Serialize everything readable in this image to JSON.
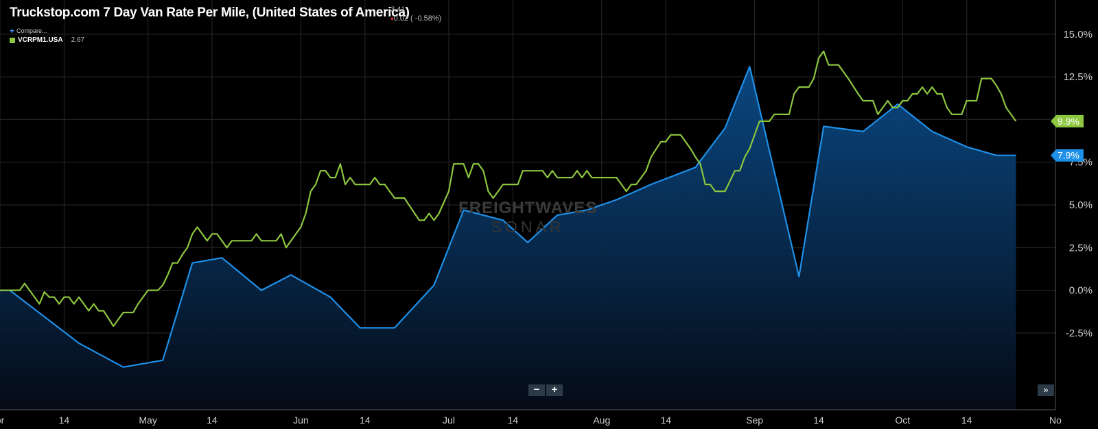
{
  "header": {
    "title": "Truckstop.com 7 Day Van Rate Per Mile, (United States of America)",
    "last_value": "3.41",
    "change": "0.02 ( -0.58%)"
  },
  "legend": {
    "compare_label": "Compare...",
    "series_name": "VCRPM1.USA",
    "series_value": "2.67"
  },
  "watermark": {
    "line1": "FREIGHTWAVES",
    "line2": "SONAR"
  },
  "controls": {
    "zoom_out": "−",
    "zoom_in": "+",
    "fast_forward": "»"
  },
  "colors": {
    "green": "#8dc63f",
    "blue": "#1e90e8",
    "grid": "#2a2a2a"
  },
  "chart_data": {
    "type": "line",
    "y_unit": "%",
    "ylim": [
      -7,
      17
    ],
    "y_ticks": [
      -2.5,
      0,
      2.5,
      5,
      7.5,
      10,
      12.5,
      15
    ],
    "y_tick_labels": [
      "-2.5%",
      "0.0%",
      "2.5%",
      "5.0%",
      "7.5%",
      "",
      "12.5%",
      "15.0%"
    ],
    "x_tick_labels": [
      {
        "date": "2019-04-01",
        "label": "pr"
      },
      {
        "date": "2019-04-14",
        "label": "14"
      },
      {
        "date": "2019-05-01",
        "label": "May"
      },
      {
        "date": "2019-05-14",
        "label": "14"
      },
      {
        "date": "2019-06-01",
        "label": "Jun"
      },
      {
        "date": "2019-06-14",
        "label": "14"
      },
      {
        "date": "2019-07-01",
        "label": "Jul"
      },
      {
        "date": "2019-07-14",
        "label": "14"
      },
      {
        "date": "2019-08-01",
        "label": "Aug"
      },
      {
        "date": "2019-08-14",
        "label": "14"
      },
      {
        "date": "2019-09-01",
        "label": "Sep"
      },
      {
        "date": "2019-09-14",
        "label": "14"
      },
      {
        "date": "2019-10-01",
        "label": "Oct"
      },
      {
        "date": "2019-10-14",
        "label": "14"
      },
      {
        "date": "2019-11-01",
        "label": "No"
      }
    ],
    "xlim": [
      "2019-04-01",
      "2019-11-01"
    ],
    "series": [
      {
        "color": "#8dc63f",
        "end_label": "9.9%",
        "points": [
          [
            "2019-04-01",
            0
          ],
          [
            "2019-04-05",
            0
          ],
          [
            "2019-04-06",
            0.4
          ],
          [
            "2019-04-07",
            0
          ],
          [
            "2019-04-09",
            -0.8
          ],
          [
            "2019-04-10",
            -0.1
          ],
          [
            "2019-04-11",
            -0.4
          ],
          [
            "2019-04-12",
            -0.4
          ],
          [
            "2019-04-13",
            -0.8
          ],
          [
            "2019-04-14",
            -0.4
          ],
          [
            "2019-04-15",
            -0.4
          ],
          [
            "2019-04-16",
            -0.8
          ],
          [
            "2019-04-17",
            -0.4
          ],
          [
            "2019-04-19",
            -1.2
          ],
          [
            "2019-04-20",
            -0.8
          ],
          [
            "2019-04-21",
            -1.2
          ],
          [
            "2019-04-22",
            -1.2
          ],
          [
            "2019-04-24",
            -2.1
          ],
          [
            "2019-04-26",
            -1.3
          ],
          [
            "2019-04-28",
            -1.3
          ],
          [
            "2019-04-29",
            -0.8
          ],
          [
            "2019-05-01",
            0
          ],
          [
            "2019-05-03",
            0
          ],
          [
            "2019-05-04",
            0.3
          ],
          [
            "2019-05-05",
            0.9
          ],
          [
            "2019-05-06",
            1.6
          ],
          [
            "2019-05-07",
            1.6
          ],
          [
            "2019-05-08",
            2.1
          ],
          [
            "2019-05-09",
            2.5
          ],
          [
            "2019-05-10",
            3.3
          ],
          [
            "2019-05-11",
            3.7
          ],
          [
            "2019-05-12",
            3.3
          ],
          [
            "2019-05-13",
            2.9
          ],
          [
            "2019-05-14",
            3.3
          ],
          [
            "2019-05-15",
            3.3
          ],
          [
            "2019-05-17",
            2.5
          ],
          [
            "2019-05-18",
            2.9
          ],
          [
            "2019-05-22",
            2.9
          ],
          [
            "2019-05-23",
            3.3
          ],
          [
            "2019-05-24",
            2.9
          ],
          [
            "2019-05-27",
            2.9
          ],
          [
            "2019-05-28",
            3.3
          ],
          [
            "2019-05-29",
            2.5
          ],
          [
            "2019-05-30",
            2.9
          ],
          [
            "2019-06-01",
            3.7
          ],
          [
            "2019-06-02",
            4.5
          ],
          [
            "2019-06-03",
            5.8
          ],
          [
            "2019-06-04",
            6.2
          ],
          [
            "2019-06-05",
            7.0
          ],
          [
            "2019-06-06",
            7.0
          ],
          [
            "2019-06-07",
            6.6
          ],
          [
            "2019-06-08",
            6.6
          ],
          [
            "2019-06-09",
            7.4
          ],
          [
            "2019-06-10",
            6.2
          ],
          [
            "2019-06-11",
            6.6
          ],
          [
            "2019-06-12",
            6.2
          ],
          [
            "2019-06-15",
            6.2
          ],
          [
            "2019-06-16",
            6.6
          ],
          [
            "2019-06-17",
            6.2
          ],
          [
            "2019-06-18",
            6.2
          ],
          [
            "2019-06-20",
            5.4
          ],
          [
            "2019-06-22",
            5.4
          ],
          [
            "2019-06-25",
            4.1
          ],
          [
            "2019-06-26",
            4.1
          ],
          [
            "2019-06-27",
            4.5
          ],
          [
            "2019-06-28",
            4.1
          ],
          [
            "2019-06-29",
            4.5
          ],
          [
            "2019-07-01",
            5.8
          ],
          [
            "2019-07-02",
            7.4
          ],
          [
            "2019-07-04",
            7.4
          ],
          [
            "2019-07-05",
            6.6
          ],
          [
            "2019-07-06",
            7.4
          ],
          [
            "2019-07-07",
            7.4
          ],
          [
            "2019-07-08",
            7.0
          ],
          [
            "2019-07-09",
            5.8
          ],
          [
            "2019-07-10",
            5.4
          ],
          [
            "2019-07-11",
            5.8
          ],
          [
            "2019-07-12",
            6.2
          ],
          [
            "2019-07-15",
            6.2
          ],
          [
            "2019-07-16",
            7.0
          ],
          [
            "2019-07-20",
            7.0
          ],
          [
            "2019-07-21",
            6.6
          ],
          [
            "2019-07-22",
            7.0
          ],
          [
            "2019-07-23",
            6.6
          ],
          [
            "2019-07-26",
            6.6
          ],
          [
            "2019-07-27",
            7.0
          ],
          [
            "2019-07-28",
            6.6
          ],
          [
            "2019-07-29",
            7.0
          ],
          [
            "2019-07-30",
            6.6
          ],
          [
            "2019-07-31",
            6.6
          ],
          [
            "2019-08-01",
            6.6
          ],
          [
            "2019-08-03",
            6.6
          ],
          [
            "2019-08-04",
            6.6
          ],
          [
            "2019-08-05",
            6.2
          ],
          [
            "2019-08-06",
            5.8
          ],
          [
            "2019-08-07",
            6.2
          ],
          [
            "2019-08-08",
            6.2
          ],
          [
            "2019-08-09",
            6.6
          ],
          [
            "2019-08-10",
            7.0
          ],
          [
            "2019-08-11",
            7.8
          ],
          [
            "2019-08-13",
            8.7
          ],
          [
            "2019-08-14",
            8.7
          ],
          [
            "2019-08-15",
            9.1
          ],
          [
            "2019-08-17",
            9.1
          ],
          [
            "2019-08-19",
            8.3
          ],
          [
            "2019-08-20",
            7.8
          ],
          [
            "2019-08-21",
            7.4
          ],
          [
            "2019-08-22",
            6.2
          ],
          [
            "2019-08-23",
            6.2
          ],
          [
            "2019-08-24",
            5.8
          ],
          [
            "2019-08-26",
            5.8
          ],
          [
            "2019-08-28",
            7.0
          ],
          [
            "2019-08-29",
            7.0
          ],
          [
            "2019-08-30",
            7.8
          ],
          [
            "2019-08-31",
            8.3
          ],
          [
            "2019-09-01",
            9.1
          ],
          [
            "2019-09-02",
            9.9
          ],
          [
            "2019-09-04",
            9.9
          ],
          [
            "2019-09-05",
            10.3
          ],
          [
            "2019-09-08",
            10.3
          ],
          [
            "2019-09-09",
            11.5
          ],
          [
            "2019-09-10",
            11.9
          ],
          [
            "2019-09-12",
            11.9
          ],
          [
            "2019-09-13",
            12.4
          ],
          [
            "2019-09-14",
            13.6
          ],
          [
            "2019-09-15",
            14.0
          ],
          [
            "2019-09-16",
            13.2
          ],
          [
            "2019-09-18",
            13.2
          ],
          [
            "2019-09-20",
            12.4
          ],
          [
            "2019-09-22",
            11.5
          ],
          [
            "2019-09-23",
            11.1
          ],
          [
            "2019-09-25",
            11.1
          ],
          [
            "2019-09-26",
            10.3
          ],
          [
            "2019-09-28",
            11.1
          ],
          [
            "2019-09-29",
            10.7
          ],
          [
            "2019-09-30",
            10.7
          ],
          [
            "2019-10-01",
            11.1
          ],
          [
            "2019-10-02",
            11.1
          ],
          [
            "2019-10-03",
            11.5
          ],
          [
            "2019-10-04",
            11.5
          ],
          [
            "2019-10-05",
            11.9
          ],
          [
            "2019-10-06",
            11.5
          ],
          [
            "2019-10-07",
            11.9
          ],
          [
            "2019-10-08",
            11.5
          ],
          [
            "2019-10-09",
            11.5
          ],
          [
            "2019-10-10",
            10.7
          ],
          [
            "2019-10-11",
            10.3
          ],
          [
            "2019-10-13",
            10.3
          ],
          [
            "2019-10-14",
            11.1
          ],
          [
            "2019-10-16",
            11.1
          ],
          [
            "2019-10-17",
            12.4
          ],
          [
            "2019-10-19",
            12.4
          ],
          [
            "2019-10-20",
            12.0
          ],
          [
            "2019-10-21",
            11.5
          ],
          [
            "2019-10-22",
            10.7
          ],
          [
            "2019-10-24",
            9.9
          ]
        ]
      },
      {
        "color": "#1e90e8",
        "end_label": "7.9%",
        "area": true,
        "points": [
          [
            "2019-04-01",
            0
          ],
          [
            "2019-04-03",
            0
          ],
          [
            "2019-04-17",
            -3.1
          ],
          [
            "2019-04-26",
            -4.5
          ],
          [
            "2019-05-04",
            -4.1
          ],
          [
            "2019-05-10",
            1.6
          ],
          [
            "2019-05-16",
            1.9
          ],
          [
            "2019-05-24",
            0
          ],
          [
            "2019-05-30",
            0.9
          ],
          [
            "2019-06-07",
            -0.4
          ],
          [
            "2019-06-13",
            -2.2
          ],
          [
            "2019-06-20",
            -2.2
          ],
          [
            "2019-06-28",
            0.3
          ],
          [
            "2019-07-04",
            4.7
          ],
          [
            "2019-07-12",
            4.1
          ],
          [
            "2019-07-17",
            2.8
          ],
          [
            "2019-07-23",
            4.4
          ],
          [
            "2019-07-29",
            4.7
          ],
          [
            "2019-08-04",
            5.3
          ],
          [
            "2019-08-11",
            6.2
          ],
          [
            "2019-08-20",
            7.2
          ],
          [
            "2019-08-26",
            9.5
          ],
          [
            "2019-08-31",
            13.1
          ],
          [
            "2019-09-10",
            0.8
          ],
          [
            "2019-09-15",
            9.6
          ],
          [
            "2019-09-23",
            9.3
          ],
          [
            "2019-09-30",
            10.9
          ],
          [
            "2019-10-07",
            9.3
          ],
          [
            "2019-10-14",
            8.4
          ],
          [
            "2019-10-20",
            7.9
          ],
          [
            "2019-10-24",
            7.9
          ]
        ]
      }
    ]
  }
}
